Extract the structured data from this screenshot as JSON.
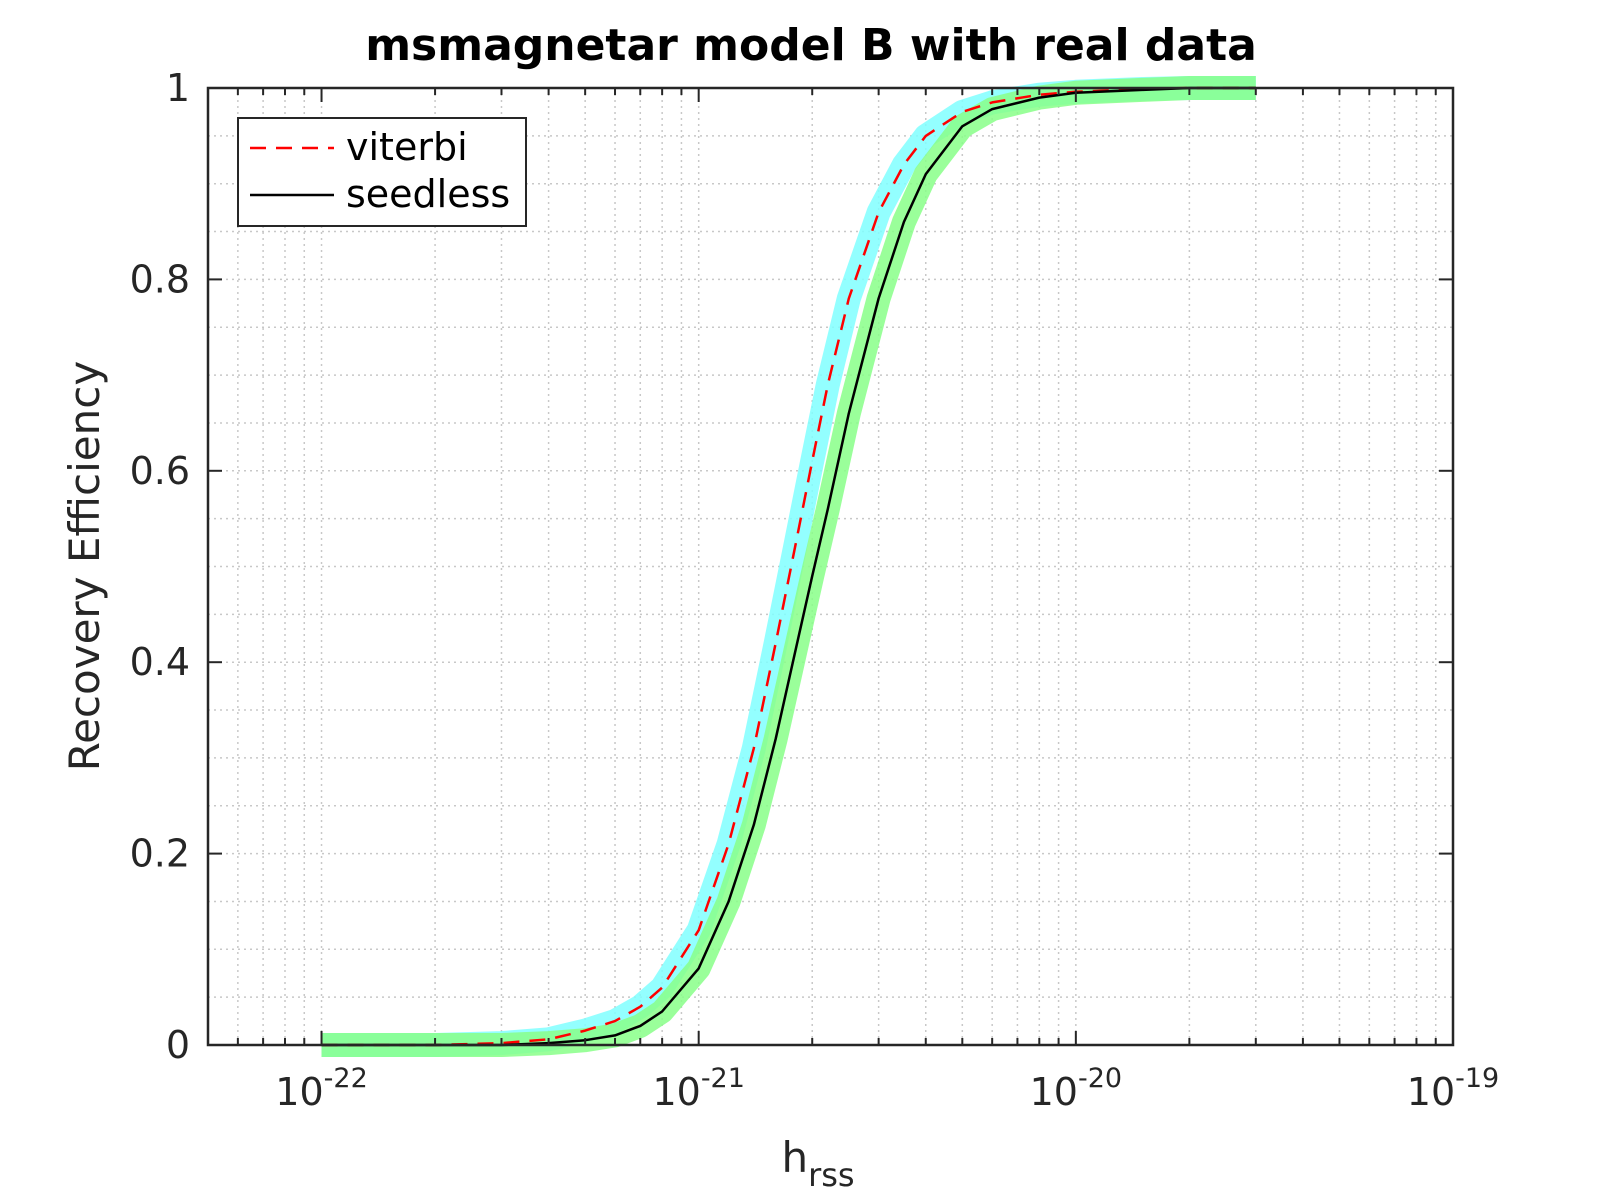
{
  "chart_data": {
    "type": "line",
    "title": "msmagnetar model B with real data",
    "xlabel": {
      "main": "h",
      "sub": "rss"
    },
    "ylabel": "Recovery Efficiency",
    "xscale": "log",
    "xlim": [
      5e-23,
      1e-19
    ],
    "ylim": [
      0,
      1
    ],
    "grid": true,
    "legend_position": "top-left",
    "x_ticks": [
      {
        "value": 1e-22,
        "base": "10",
        "exp": "-22"
      },
      {
        "value": 1e-21,
        "base": "10",
        "exp": "-21"
      },
      {
        "value": 1e-20,
        "base": "10",
        "exp": "-20"
      },
      {
        "value": 1e-19,
        "base": "10",
        "exp": "-19"
      }
    ],
    "y_ticks": [
      {
        "value": 0,
        "label": "0"
      },
      {
        "value": 0.2,
        "label": "0.2"
      },
      {
        "value": 0.4,
        "label": "0.4"
      },
      {
        "value": 0.6,
        "label": "0.6"
      },
      {
        "value": 0.8,
        "label": "0.8"
      },
      {
        "value": 1,
        "label": "1"
      }
    ],
    "series": [
      {
        "name": "viterbi",
        "color": "#ff0000",
        "style": "dashed",
        "band_color": "#80ffff",
        "x": [
          1e-22,
          2e-22,
          3e-22,
          4e-22,
          5e-22,
          6e-22,
          7e-22,
          8e-22,
          1e-21,
          1.2e-21,
          1.4e-21,
          1.6e-21,
          1.8e-21,
          2e-21,
          2.2e-21,
          2.5e-21,
          3e-21,
          3.5e-21,
          4e-21,
          5e-21,
          6e-21,
          8e-21,
          1e-20,
          1.5e-20,
          2e-20,
          3e-20
        ],
        "y": [
          0.0,
          0.0,
          0.002,
          0.006,
          0.015,
          0.025,
          0.04,
          0.06,
          0.12,
          0.21,
          0.31,
          0.42,
          0.52,
          0.61,
          0.69,
          0.78,
          0.87,
          0.92,
          0.95,
          0.975,
          0.985,
          0.993,
          0.996,
          0.999,
          1.0,
          1.0
        ]
      },
      {
        "name": "seedless",
        "color": "#000000",
        "style": "solid",
        "band_color": "#88ff88",
        "x": [
          1e-22,
          2e-22,
          3e-22,
          4e-22,
          5e-22,
          6e-22,
          7e-22,
          8e-22,
          1e-21,
          1.2e-21,
          1.4e-21,
          1.6e-21,
          1.8e-21,
          2e-21,
          2.2e-21,
          2.5e-21,
          3e-21,
          3.5e-21,
          4e-21,
          5e-21,
          6e-21,
          8e-21,
          1e-20,
          1.5e-20,
          2e-20,
          3e-20
        ],
        "y": [
          0.0,
          0.0,
          0.0,
          0.002,
          0.005,
          0.01,
          0.02,
          0.035,
          0.08,
          0.15,
          0.23,
          0.32,
          0.41,
          0.49,
          0.56,
          0.66,
          0.78,
          0.86,
          0.91,
          0.96,
          0.978,
          0.99,
          0.995,
          0.998,
          1.0,
          1.0
        ]
      }
    ]
  }
}
